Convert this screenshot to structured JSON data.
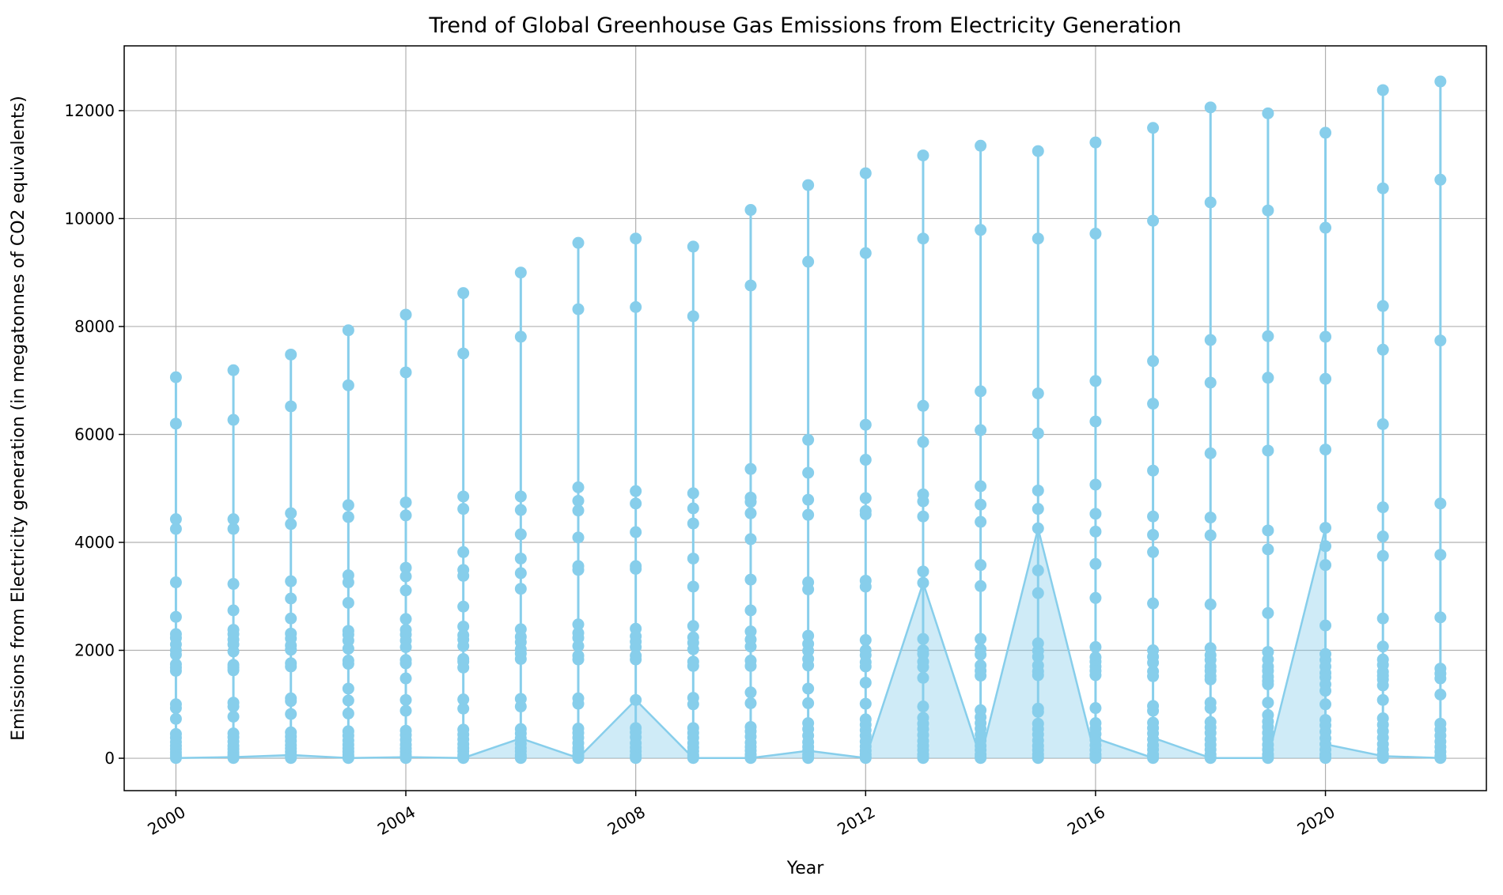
{
  "chart_data": {
    "type": "line",
    "title": "Trend of Global Greenhouse Gas Emissions from Electricity Generation",
    "xlabel": "Year",
    "ylabel": "Emissions from Electricity generation (in megatonnes of CO2 equivalents)",
    "xlim": [
      1999.1,
      2022.8
    ],
    "ylim": [
      -600,
      13200
    ],
    "x_ticks": [
      2000,
      2004,
      2008,
      2012,
      2016,
      2020
    ],
    "y_ticks": [
      0,
      2000,
      4000,
      6000,
      8000,
      10000,
      12000
    ],
    "grid": true,
    "legend": "none",
    "colors": {
      "series": "#87ceeb",
      "fill": "#87ceeb",
      "grid": "#b0b0b0",
      "axes": "#000000"
    },
    "points_by_year": [
      {
        "year": 2000,
        "values": [
          7060,
          6200,
          4430,
          4250,
          3260,
          2620,
          2300,
          2230,
          2110,
          2000,
          1920,
          1740,
          1680,
          1620,
          1000,
          930,
          730,
          450,
          380,
          300,
          230,
          170,
          110,
          60,
          20,
          5
        ]
      },
      {
        "year": 2001,
        "values": [
          7190,
          6270,
          4430,
          4250,
          3230,
          2740,
          2380,
          2300,
          2200,
          2110,
          1980,
          1730,
          1680,
          1630,
          1030,
          960,
          770,
          460,
          390,
          310,
          230,
          170,
          110,
          60,
          20,
          5
        ]
      },
      {
        "year": 2002,
        "values": [
          7480,
          6520,
          4540,
          4340,
          3280,
          2960,
          2590,
          2310,
          2220,
          2090,
          2010,
          1760,
          1700,
          1110,
          1060,
          820,
          480,
          400,
          320,
          240,
          180,
          120,
          60,
          20,
          5
        ]
      },
      {
        "year": 2003,
        "values": [
          7930,
          6910,
          4690,
          4470,
          3390,
          3260,
          2880,
          2360,
          2290,
          2180,
          2030,
          1810,
          1750,
          1290,
          1070,
          830,
          500,
          420,
          330,
          250,
          180,
          120,
          60,
          20,
          5
        ]
      },
      {
        "year": 2004,
        "values": [
          8220,
          7150,
          4740,
          4500,
          3530,
          3370,
          3110,
          2580,
          2380,
          2290,
          2180,
          2060,
          1820,
          1760,
          1480,
          1080,
          880,
          510,
          430,
          340,
          250,
          180,
          120,
          60,
          20,
          5
        ]
      },
      {
        "year": 2005,
        "values": [
          8620,
          7500,
          4850,
          4620,
          3820,
          3490,
          3380,
          2810,
          2440,
          2280,
          2200,
          2080,
          1840,
          1790,
          1680,
          1090,
          920,
          530,
          440,
          350,
          260,
          190,
          130,
          60,
          20,
          5
        ]
      },
      {
        "year": 2006,
        "values": [
          9000,
          7810,
          4850,
          4600,
          4150,
          3700,
          3430,
          3140,
          2390,
          2250,
          2150,
          2020,
          1940,
          1840,
          1100,
          960,
          540,
          460,
          370,
          270,
          190,
          130,
          60,
          20,
          5
        ]
      },
      {
        "year": 2007,
        "values": [
          9550,
          8320,
          5020,
          4770,
          4590,
          4090,
          3560,
          3490,
          2480,
          2320,
          2230,
          2080,
          1900,
          1830,
          1110,
          1010,
          550,
          470,
          380,
          280,
          190,
          130,
          60,
          20,
          5
        ]
      },
      {
        "year": 2008,
        "values": [
          9630,
          8360,
          4950,
          4720,
          4190,
          3560,
          3510,
          2400,
          2260,
          2160,
          2060,
          1900,
          1830,
          1080,
          560,
          480,
          390,
          280,
          200,
          130,
          60,
          20,
          5
        ]
      },
      {
        "year": 2009,
        "values": [
          9480,
          8190,
          4910,
          4630,
          4350,
          3700,
          3180,
          2450,
          2240,
          2140,
          2020,
          1790,
          1710,
          1120,
          1000,
          560,
          470,
          380,
          280,
          200,
          130,
          60,
          20,
          5
        ]
      },
      {
        "year": 2010,
        "values": [
          10160,
          8760,
          5360,
          4830,
          4750,
          4540,
          4060,
          3310,
          2740,
          2350,
          2200,
          2070,
          1810,
          1710,
          1220,
          1020,
          580,
          500,
          400,
          290,
          210,
          140,
          70,
          20,
          5
        ]
      },
      {
        "year": 2011,
        "values": [
          10620,
          9200,
          5900,
          5290,
          4790,
          4510,
          3260,
          3130,
          2270,
          2120,
          1990,
          1840,
          1720,
          1290,
          1020,
          650,
          540,
          420,
          300,
          210,
          140,
          70,
          20,
          5
        ]
      },
      {
        "year": 2012,
        "values": [
          10840,
          9360,
          6180,
          5530,
          4820,
          4580,
          4520,
          3290,
          3180,
          2190,
          2000,
          1910,
          1780,
          1700,
          1400,
          1010,
          720,
          620,
          520,
          420,
          310,
          220,
          140,
          70,
          20,
          5
        ]
      },
      {
        "year": 2013,
        "values": [
          11170,
          9630,
          6530,
          5860,
          4890,
          4760,
          4480,
          3460,
          3250,
          2210,
          2000,
          1930,
          1790,
          1690,
          1490,
          960,
          750,
          640,
          540,
          430,
          320,
          230,
          150,
          70,
          20,
          5
        ]
      },
      {
        "year": 2014,
        "values": [
          11350,
          9790,
          6800,
          6080,
          5040,
          4700,
          4380,
          3580,
          3190,
          2210,
          2020,
          1920,
          1720,
          1620,
          1530,
          890,
          760,
          650,
          550,
          440,
          330,
          230,
          150,
          70,
          20,
          5
        ]
      },
      {
        "year": 2015,
        "values": [
          11250,
          9630,
          6760,
          6020,
          4960,
          4620,
          4260,
          3480,
          3060,
          2130,
          1990,
          1880,
          1720,
          1610,
          1540,
          920,
          860,
          640,
          540,
          440,
          330,
          230,
          150,
          70,
          20,
          5
        ]
      },
      {
        "year": 2016,
        "values": [
          11410,
          9720,
          6990,
          6240,
          5070,
          4530,
          4200,
          3600,
          2970,
          2060,
          1870,
          1790,
          1700,
          1620,
          1540,
          930,
          650,
          550,
          450,
          340,
          240,
          150,
          70,
          20,
          5
        ]
      },
      {
        "year": 2017,
        "values": [
          11680,
          9960,
          7360,
          6570,
          5330,
          4480,
          4140,
          3820,
          2870,
          2000,
          1880,
          1770,
          1610,
          1520,
          970,
          880,
          660,
          560,
          460,
          350,
          240,
          160,
          70,
          20,
          5
        ]
      },
      {
        "year": 2018,
        "values": [
          12060,
          10300,
          7750,
          6960,
          5650,
          4460,
          4130,
          2850,
          2040,
          1910,
          1820,
          1700,
          1620,
          1520,
          1460,
          1030,
          930,
          670,
          570,
          470,
          350,
          250,
          160,
          70,
          20,
          5
        ]
      },
      {
        "year": 2019,
        "values": [
          11950,
          10150,
          7820,
          7050,
          5700,
          4220,
          3870,
          2690,
          1970,
          1830,
          1700,
          1620,
          1510,
          1430,
          1370,
          1030,
          800,
          680,
          580,
          470,
          360,
          250,
          160,
          70,
          20,
          5
        ]
      },
      {
        "year": 2020,
        "values": [
          11590,
          9830,
          7810,
          7030,
          5720,
          4270,
          3930,
          3580,
          2460,
          1930,
          1820,
          1700,
          1580,
          1500,
          1370,
          1250,
          1000,
          710,
          610,
          490,
          370,
          260,
          160,
          70,
          20,
          5
        ]
      },
      {
        "year": 2021,
        "values": [
          12380,
          10560,
          8380,
          7570,
          6190,
          4650,
          4110,
          3750,
          2590,
          2070,
          1830,
          1730,
          1600,
          1530,
          1460,
          1350,
          1080,
          740,
          620,
          500,
          380,
          260,
          160,
          70,
          20,
          5
        ]
      },
      {
        "year": 2022,
        "values": [
          12540,
          10720,
          7740,
          4720,
          3770,
          2610,
          1660,
          1570,
          1480,
          1180,
          640,
          530,
          420,
          310,
          210,
          120,
          40,
          5
        ]
      }
    ],
    "connector_path": [
      {
        "year": 2000,
        "value": 5
      },
      {
        "year": 2001,
        "value": 20
      },
      {
        "year": 2002,
        "value": 60
      },
      {
        "year": 2003,
        "value": 5
      },
      {
        "year": 2004,
        "value": 20
      },
      {
        "year": 2005,
        "value": 5
      },
      {
        "year": 2006,
        "value": 370
      },
      {
        "year": 2007,
        "value": 5
      },
      {
        "year": 2008,
        "value": 1080
      },
      {
        "year": 2009,
        "value": 5
      },
      {
        "year": 2010,
        "value": 5
      },
      {
        "year": 2011,
        "value": 140
      },
      {
        "year": 2012,
        "value": 5
      },
      {
        "year": 2013,
        "value": 3250
      },
      {
        "year": 2014,
        "value": 5
      },
      {
        "year": 2015,
        "value": 4260
      },
      {
        "year": 2016,
        "value": 5
      },
      {
        "year": 2016,
        "value": 370
      },
      {
        "year": 2017,
        "value": 5
      },
      {
        "year": 2017,
        "value": 380
      },
      {
        "year": 2018,
        "value": 5
      },
      {
        "year": 2019,
        "value": 5
      },
      {
        "year": 2020,
        "value": 4270
      },
      {
        "year": 2020,
        "value": 260
      },
      {
        "year": 2021,
        "value": 40
      },
      {
        "year": 2022,
        "value": 5
      }
    ]
  }
}
